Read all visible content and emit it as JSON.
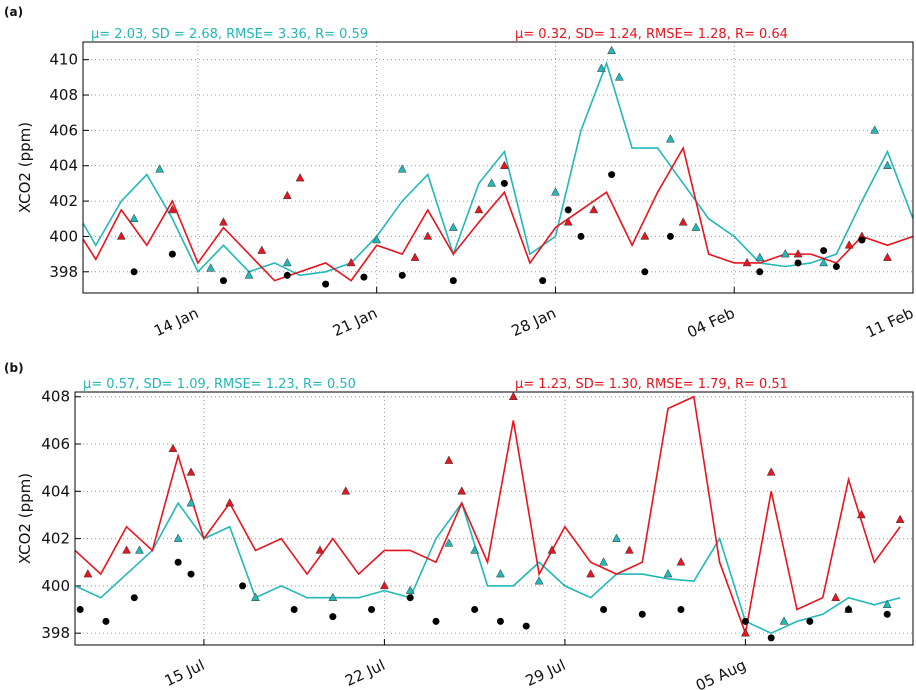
{
  "chart_data": [
    {
      "type": "line",
      "panel": "(a)",
      "ylabel": "XCO2 (ppm)",
      "grid": true,
      "annotations": [
        {
          "text": "μ= 2.03,  SD  = 2.68, RMSE= 3.36, R= 0.59",
          "color": "#22b8b8"
        },
        {
          "text": "μ= 0.32, SD= 1.24, RMSE= 1.28, R= 0.64",
          "color": "#e8141e"
        }
      ],
      "xlim": [
        9.5,
        42
      ],
      "ylim": [
        396.8,
        411
      ],
      "xticks": [
        {
          "value": 14,
          "label": "14 Jan"
        },
        {
          "value": 21,
          "label": "21 Jan"
        },
        {
          "value": 28,
          "label": "28 Jan"
        },
        {
          "value": 35,
          "label": "04 Feb"
        },
        {
          "value": 42,
          "label": "11 Feb"
        }
      ],
      "yticks": [
        398,
        400,
        402,
        404,
        406,
        408,
        410
      ],
      "x": [
        9,
        10,
        11,
        12,
        13,
        14,
        15,
        16,
        17,
        18,
        19,
        20,
        21,
        22,
        23,
        24,
        25,
        26,
        27,
        28,
        29,
        30,
        31,
        32,
        33,
        34,
        35,
        36,
        37,
        38,
        39,
        40,
        41,
        42
      ],
      "series": [
        {
          "marker": "line",
          "color": "#22b8b8",
          "values": [
            402,
            399.5,
            402,
            403.5,
            401,
            398,
            399.5,
            398,
            398.5,
            397.8,
            398,
            398.5,
            400,
            402,
            403.5,
            399,
            403,
            404.8,
            399,
            400,
            406,
            409.8,
            405,
            405,
            403,
            401,
            400,
            398.5,
            398.3,
            398.5,
            399,
            402,
            404.8,
            401
          ]
        },
        {
          "marker": "line",
          "color": "#e8141e",
          "values": [
            401,
            398.7,
            401.5,
            399.5,
            402,
            398.5,
            400.5,
            399,
            397.5,
            398,
            398.5,
            397.5,
            399.5,
            399,
            401.5,
            399,
            400.8,
            402.5,
            398.5,
            400.5,
            401.5,
            402.5,
            399.5,
            402.5,
            405,
            399,
            398.5,
            398.5,
            399,
            399,
            398.5,
            400,
            399.5,
            400
          ]
        },
        {
          "marker": "triangle",
          "color": "#22b8b8",
          "x": [
            11.5,
            12.5,
            14.5,
            16,
            17.5,
            21,
            22,
            24,
            25.5,
            28,
            29.8,
            30.2,
            30.5,
            32.5,
            33.5,
            37,
            38.5,
            40.5,
            41,
            36
          ],
          "values": [
            401,
            403.8,
            398.2,
            397.8,
            398.5,
            399.8,
            403.8,
            400.5,
            403,
            402.5,
            409.5,
            410.5,
            409,
            405.5,
            400.5,
            399,
            398.5,
            406,
            404,
            398.8
          ]
        },
        {
          "marker": "triangle",
          "color": "#e8141e",
          "x": [
            11,
            13,
            15,
            16.5,
            17.5,
            18,
            20,
            22.5,
            23,
            25,
            26,
            28.5,
            29.5,
            31.5,
            33,
            35.5,
            37.5,
            39.5,
            40,
            41
          ],
          "values": [
            400,
            401.5,
            400.8,
            399.2,
            402.3,
            403.3,
            398.5,
            398.8,
            400,
            401.5,
            404,
            400.8,
            401.5,
            400,
            400.8,
            398.5,
            399,
            399.5,
            400,
            398.8
          ]
        },
        {
          "marker": "circle",
          "color": "#000000",
          "x": [
            11.5,
            13,
            15,
            17.5,
            19,
            20.5,
            22,
            24,
            26,
            27.5,
            28.5,
            29,
            30.2,
            31.5,
            32.5,
            36,
            37.5,
            38.5,
            40,
            39
          ],
          "values": [
            398,
            399,
            397.5,
            397.8,
            397.3,
            397.7,
            397.8,
            397.5,
            403,
            397.5,
            401.5,
            400,
            403.5,
            398,
            400,
            398,
            398.5,
            399.2,
            399.8,
            398.3
          ]
        }
      ]
    },
    {
      "type": "line",
      "panel": "(b)",
      "ylabel": "XCO2 (ppm)",
      "grid": true,
      "annotations": [
        {
          "text": "μ= 0.57,  SD= 1.09, RMSE= 1.23, R= 0.50",
          "color": "#22b8b8"
        },
        {
          "text": "μ= 1.23, SD= 1.30, RMSE= 1.79, R= 0.51",
          "color": "#e8141e"
        }
      ],
      "xlim": [
        10,
        42.5
      ],
      "ylim": [
        397.5,
        408.2
      ],
      "xticks": [
        {
          "value": 15,
          "label": "15 Jul"
        },
        {
          "value": 22,
          "label": "22 Jul"
        },
        {
          "value": 29,
          "label": "29 Jul"
        },
        {
          "value": 36,
          "label": "05 Aug"
        }
      ],
      "yticks": [
        398,
        400,
        402,
        404,
        406,
        408
      ],
      "x": [
        10,
        11,
        12,
        13,
        14,
        15,
        16,
        17,
        18,
        19,
        20,
        21,
        22,
        23,
        24,
        25,
        26,
        27,
        28,
        29,
        30,
        31,
        32,
        33,
        34,
        35,
        36,
        37,
        38,
        39,
        40,
        41,
        42
      ],
      "series": [
        {
          "marker": "line",
          "color": "#22b8b8",
          "values": [
            400,
            399.5,
            400.5,
            401.5,
            403.5,
            402,
            402.5,
            399.5,
            400,
            399.5,
            399.5,
            399.5,
            399.8,
            399.5,
            402,
            403.5,
            400,
            400,
            401,
            400,
            399.5,
            400.5,
            400.5,
            400.3,
            400.2,
            402,
            398.5,
            398,
            398.5,
            398.8,
            399.5,
            399.2,
            399.5
          ]
        },
        {
          "marker": "line",
          "color": "#e8141e",
          "values": [
            401.5,
            400.5,
            402.5,
            401.5,
            405.5,
            402,
            403.5,
            401.5,
            402,
            400.5,
            402,
            400.5,
            401.5,
            401.5,
            401,
            403.5,
            401,
            407,
            400.5,
            402.5,
            401,
            400.5,
            401,
            407.5,
            408,
            401,
            398,
            404,
            399,
            399.5,
            404.5,
            401,
            402.5
          ]
        },
        {
          "marker": "triangle",
          "color": "#22b8b8",
          "x": [
            12.5,
            14,
            14.5,
            17,
            20,
            23,
            24.5,
            25.5,
            28,
            30.5,
            31,
            33,
            37.5,
            40,
            41.5,
            26.5
          ],
          "values": [
            401.5,
            402,
            403.5,
            399.5,
            399.5,
            399.8,
            401.8,
            401.5,
            400.2,
            401,
            402,
            400.5,
            398.5,
            399,
            399.2,
            400.5
          ]
        },
        {
          "marker": "triangle",
          "color": "#e8141e",
          "x": [
            10.5,
            12,
            13.8,
            14.5,
            16,
            19.5,
            20.5,
            22,
            24.5,
            25,
            27,
            28.5,
            30,
            31.5,
            33.5,
            36,
            37,
            39.5,
            40.5,
            42
          ],
          "values": [
            400.5,
            401.5,
            405.8,
            404.8,
            403.5,
            401.5,
            404,
            400,
            405.3,
            404,
            408,
            401.5,
            400.5,
            401.5,
            401,
            398,
            404.8,
            399.5,
            403,
            402.8
          ]
        },
        {
          "marker": "circle",
          "color": "#000000",
          "x": [
            10.2,
            11.2,
            12.3,
            14,
            14.5,
            16.5,
            18.5,
            20,
            21.5,
            23,
            24,
            25.5,
            26.5,
            27.5,
            30.5,
            32,
            33.5,
            36,
            37,
            38.5,
            40,
            41.5
          ],
          "values": [
            399,
            398.5,
            399.5,
            401,
            400.5,
            400,
            399,
            398.7,
            399,
            399.5,
            398.5,
            399,
            398.5,
            398.3,
            399,
            398.8,
            399,
            398.5,
            397.8,
            398.5,
            399,
            398.8
          ]
        }
      ]
    }
  ]
}
